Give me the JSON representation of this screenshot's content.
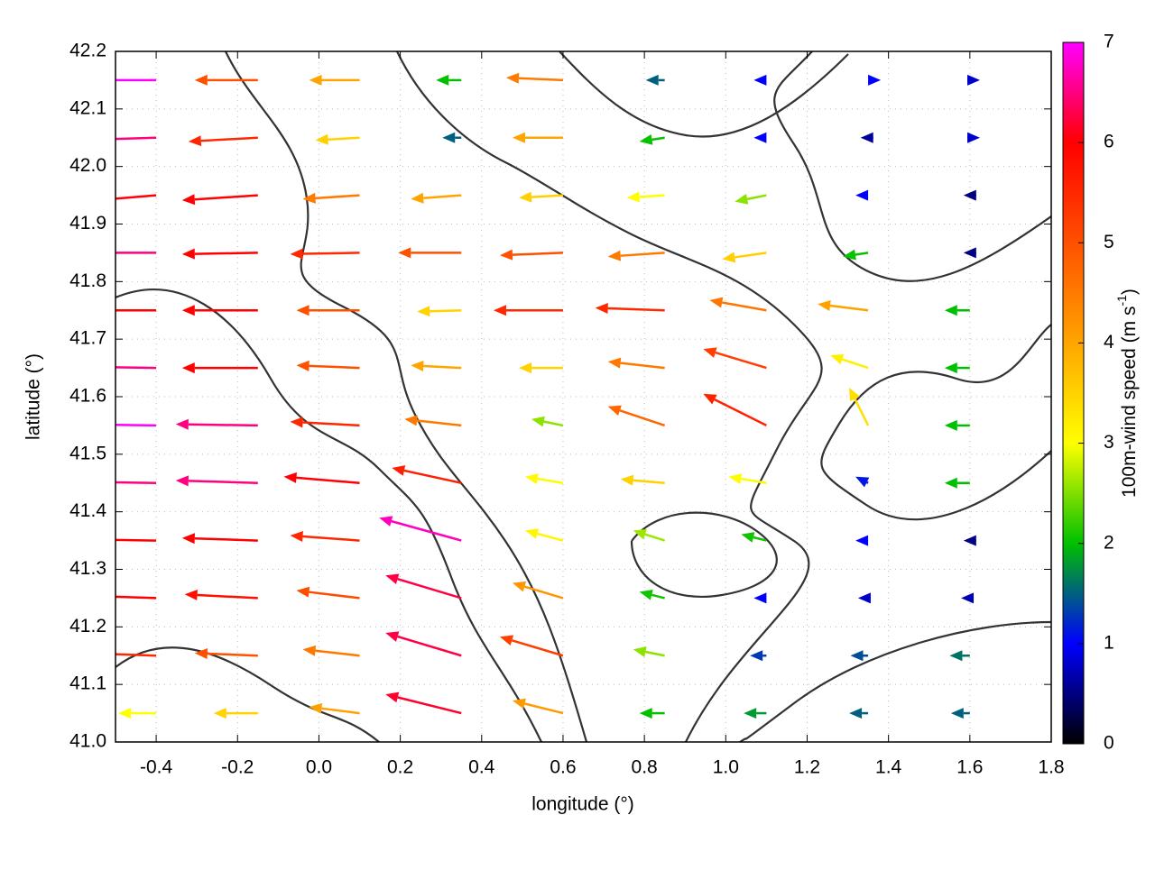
{
  "chart_data": {
    "type": "quiver",
    "xlabel": "longitude (°)",
    "ylabel": "latitude (°)",
    "xlim": [
      -0.5,
      1.8
    ],
    "ylim": [
      41.0,
      42.2
    ],
    "xticks": [
      -0.4,
      -0.2,
      {
        "value": 0,
        "label": "0.0"
      },
      0.2,
      0.4,
      0.6,
      0.8,
      {
        "value": 1,
        "label": "1.0"
      },
      1.2,
      1.4,
      1.6,
      1.8
    ],
    "yticks": [
      {
        "value": 41,
        "label": "41.0"
      },
      41.1,
      41.2,
      41.3,
      41.4,
      41.5,
      41.6,
      41.7,
      41.8,
      41.9,
      {
        "value": 42,
        "label": "42.0"
      },
      42.1,
      42.2
    ],
    "grid": true,
    "colorbar": {
      "label": "100m-wind speed (m s",
      "label_superscript": "-1",
      "label_close": ")",
      "clim": [
        0,
        7
      ],
      "ticks": [
        0,
        1,
        2,
        3,
        4,
        5,
        6,
        7
      ],
      "colormap": [
        "#000000",
        "#0000ff",
        "#00c000",
        "#ffff00",
        "#ffa500",
        "#ff5000",
        "#ff0000",
        "#ff00ff"
      ]
    },
    "lon": [
      -0.4,
      -0.15,
      0.1,
      0.35,
      0.6,
      0.85,
      1.1,
      1.35,
      1.6
    ],
    "lat": [
      41.05,
      41.15,
      41.25,
      41.35,
      41.45,
      41.55,
      41.65,
      41.75,
      41.85,
      41.95,
      42.05,
      42.15
    ],
    "u": [
      [
        -3,
        -3.5,
        -4,
        -6,
        -4,
        -2,
        -1.8,
        -1.5,
        -1.5
      ],
      [
        -5.5,
        -5,
        -4.5,
        -6,
        -5,
        -2.5,
        -1.3,
        -1.4,
        -1.6
      ],
      [
        -6,
        -5.8,
        -5,
        -6,
        -4,
        -2,
        -1,
        -0.8,
        -0.7
      ],
      [
        -6,
        -6,
        -5.5,
        -6.5,
        -3,
        -2.5,
        -2,
        -1,
        -0.5
      ],
      [
        -6.5,
        -6.5,
        -6,
        -5.5,
        -3,
        -3.5,
        -3,
        -1,
        -2
      ],
      [
        -7,
        -6.5,
        -5.5,
        -4.5,
        -2.5,
        -4.5,
        -5,
        -1.5,
        -2
      ],
      [
        -6.5,
        -6,
        -5,
        -4,
        -3.5,
        -4.5,
        -5,
        -3,
        -2
      ],
      [
        -6,
        -6,
        -5,
        -3.5,
        -5.5,
        -5.5,
        -4.5,
        -4,
        -2
      ],
      [
        -6.5,
        -6,
        -5.5,
        -5,
        -5,
        -4.5,
        -3.5,
        -2,
        -0.5
      ],
      [
        -6,
        -6,
        -4.5,
        -4,
        -3.5,
        -3,
        -2.5,
        -1,
        -0.5
      ],
      [
        -6.5,
        -5.5,
        -3.5,
        -1.5,
        -4,
        -2,
        -1,
        -0.6,
        0.8
      ],
      [
        -7,
        -5,
        -4,
        -2,
        -4.5,
        -1.5,
        -1,
        1,
        0.8
      ]
    ],
    "v": [
      [
        0,
        0,
        0.5,
        1.5,
        1,
        0,
        0,
        0,
        0
      ],
      [
        0.2,
        0.2,
        0.5,
        1.8,
        1.5,
        0.5,
        0,
        0,
        0
      ],
      [
        0.2,
        0.3,
        0.6,
        1.8,
        1.2,
        0.5,
        0,
        0,
        0
      ],
      [
        0.1,
        0.2,
        0.4,
        1.8,
        0.8,
        0.8,
        0.5,
        0,
        0
      ],
      [
        0.1,
        0.2,
        0.5,
        1.2,
        0.5,
        0.3,
        0.5,
        0.5,
        0
      ],
      [
        0.1,
        0.1,
        0.3,
        0.5,
        0.5,
        1.5,
        2.5,
        3,
        0
      ],
      [
        0.1,
        0,
        0.2,
        0.2,
        0,
        0.5,
        1.5,
        1,
        0
      ],
      [
        0,
        0,
        0,
        -0.1,
        0,
        0.2,
        0.8,
        0.5,
        0
      ],
      [
        0,
        -0.1,
        -0.1,
        0,
        -0.2,
        -0.3,
        -0.5,
        -0.3,
        0
      ],
      [
        -0.5,
        -0.4,
        -0.3,
        -0.3,
        -0.2,
        -0.2,
        -0.5,
        0,
        0
      ],
      [
        -0.2,
        -0.3,
        -0.2,
        0,
        0,
        -0.3,
        0,
        0,
        0
      ],
      [
        0,
        0,
        0,
        0,
        0.2,
        0,
        0,
        0,
        0
      ]
    ]
  }
}
